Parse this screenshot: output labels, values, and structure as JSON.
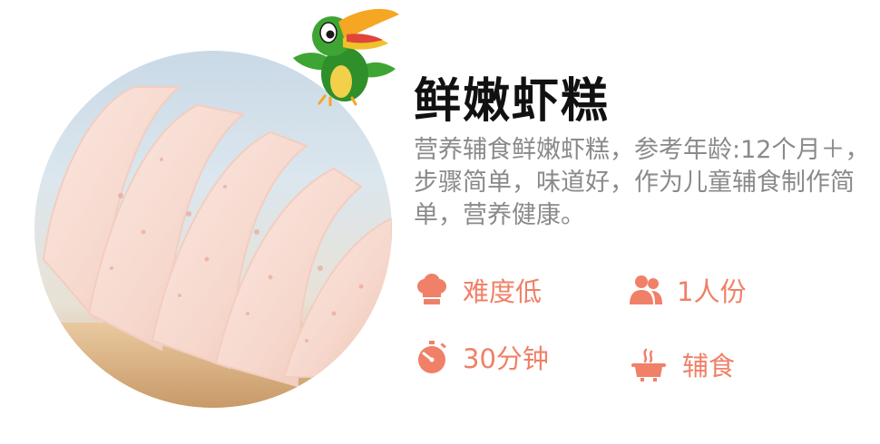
{
  "recipe": {
    "title": "鲜嫩虾糕",
    "description": "营养辅食鲜嫩虾糕，参考年龄:12个月＋，步骤简单，味道好，作为儿童辅食制作简单，营养健康。",
    "difficulty": "难度低",
    "servings": "1人份",
    "time": "30分钟",
    "category": "辅食"
  },
  "icons": {
    "difficulty": "chef-hat-icon",
    "servings": "people-icon",
    "time": "stopwatch-icon",
    "category": "cooking-pot-icon",
    "mascot": "toucan-mascot"
  },
  "colors": {
    "accent": "#f08068",
    "title": "#111111",
    "description": "#8a8a8a"
  }
}
